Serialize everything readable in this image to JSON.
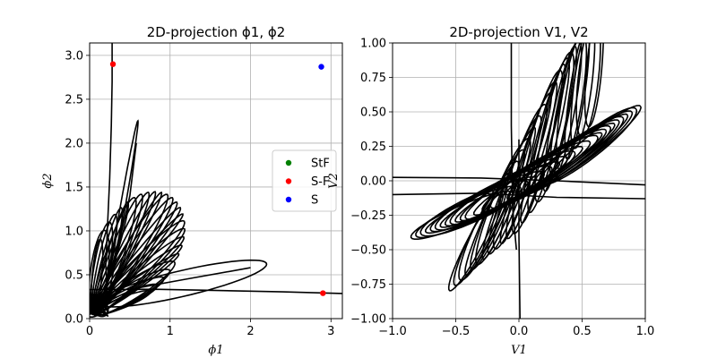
{
  "chart_data": [
    {
      "type": "line",
      "title": "2D-projection ϕ1, ϕ2",
      "xlabel": "ϕ1",
      "ylabel": "ϕ2",
      "xlim": [
        0,
        3.14159
      ],
      "ylim": [
        0,
        3.14159
      ],
      "xticks": [
        "0",
        "1",
        "2",
        "3"
      ],
      "xtick_values": [
        0,
        1,
        2,
        3
      ],
      "yticks": [
        "0.0",
        "0.5",
        "1.0",
        "1.5",
        "2.0",
        "2.5",
        "3.0"
      ],
      "ytick_values": [
        0,
        0.5,
        1.0,
        1.5,
        2.0,
        2.5,
        3.0
      ],
      "grid": true,
      "legend": {
        "placement": "center-right",
        "entries": [
          {
            "label": "StF",
            "color": "#008000"
          },
          {
            "label": "S-F",
            "color": "#ff0000"
          },
          {
            "label": "S",
            "color": "#0000ff"
          }
        ]
      },
      "series": [
        {
          "label": "S-F",
          "color": "#ff0000",
          "x": [
            0.29,
            2.9
          ],
          "y": [
            2.9,
            0.29
          ]
        },
        {
          "label": "S",
          "color": "#0000ff",
          "x": [
            2.88
          ],
          "y": [
            2.87
          ]
        }
      ],
      "trajectory_color": "#000000"
    },
    {
      "type": "line",
      "title": "2D-projection V1, V2",
      "xlabel": "V1",
      "ylabel": "V2",
      "xlim": [
        -1.0,
        1.0
      ],
      "ylim": [
        -1.0,
        1.0
      ],
      "xticks": [
        "−1.0",
        "−0.5",
        "0.0",
        "0.5",
        "1.0"
      ],
      "xtick_values": [
        -1.0,
        -0.5,
        0.0,
        0.5,
        1.0
      ],
      "yticks": [
        "−1.00",
        "−0.75",
        "−0.50",
        "−0.25",
        "0.00",
        "0.25",
        "0.50",
        "0.75",
        "1.00"
      ],
      "ytick_values": [
        -1.0,
        -0.75,
        -0.5,
        -0.25,
        0.0,
        0.25,
        0.5,
        0.75,
        1.0
      ],
      "grid": true,
      "trajectory_color": "#000000"
    }
  ]
}
